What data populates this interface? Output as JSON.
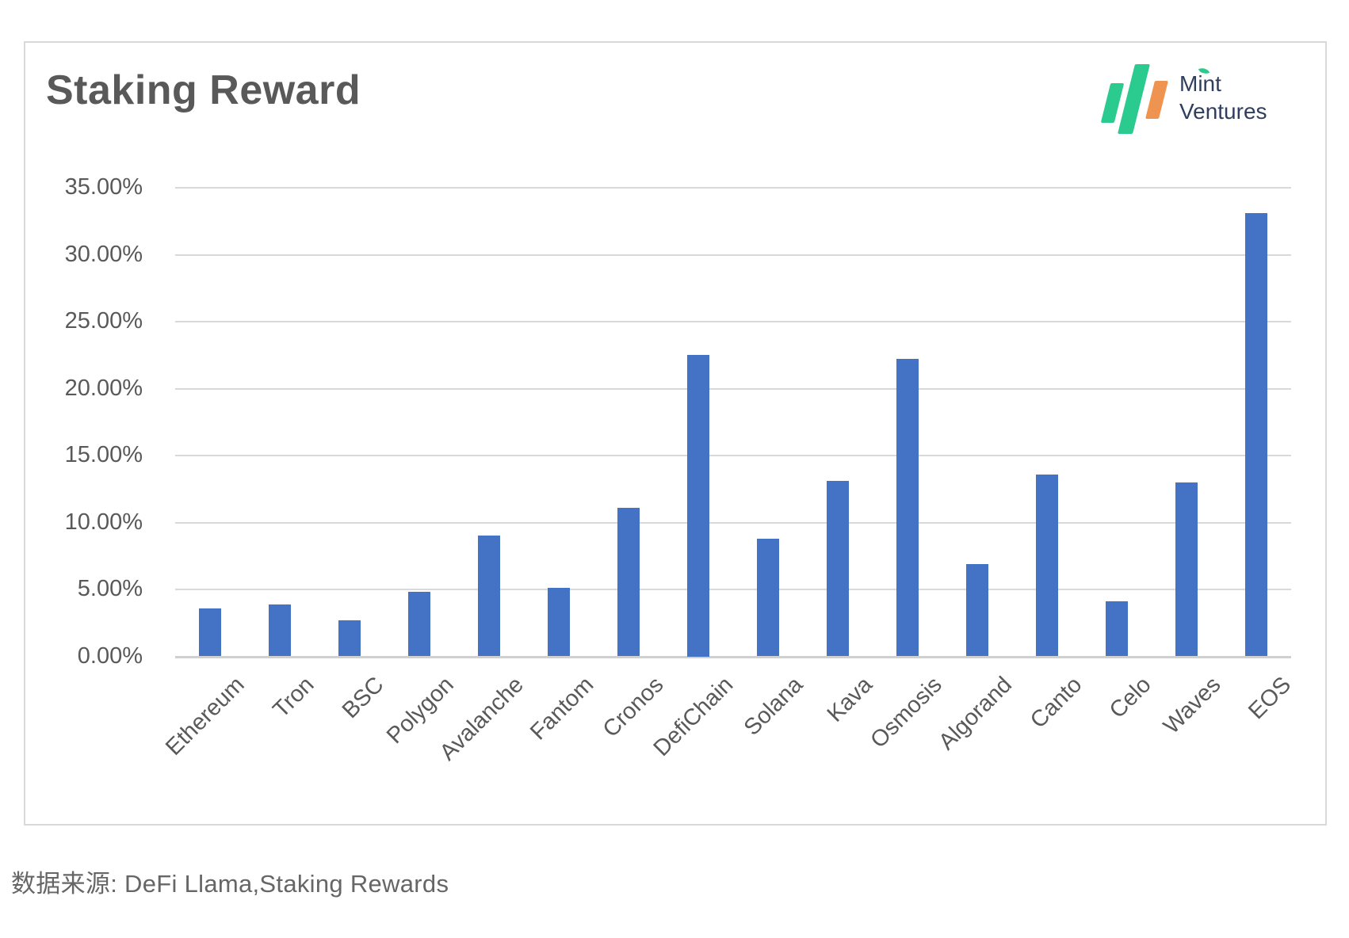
{
  "page": {
    "source_note": "数据来源: DeFi Llama,Staking Rewards",
    "background": "#ffffff"
  },
  "logo": {
    "line1": "Mint",
    "line2": "Ventures",
    "text_color": "#2f3e5c",
    "green": "#2bca8e",
    "orange": "#ef9351"
  },
  "chart_data": {
    "type": "bar",
    "title": "Staking Reward",
    "categories": [
      "Ethereum",
      "Tron",
      "BSC",
      "Polygon",
      "Avalanche",
      "Fantom",
      "Cronos",
      "DefiChain",
      "Solana",
      "Kava",
      "Osmosis",
      "Algorand",
      "Canto",
      "Celo",
      "Waves",
      "EOS"
    ],
    "values": [
      3.6,
      3.9,
      2.7,
      4.8,
      9.0,
      5.1,
      11.1,
      22.5,
      8.8,
      13.1,
      22.2,
      6.9,
      13.6,
      4.1,
      13.0,
      33.1
    ],
    "value_unit": "%",
    "xlabel": "",
    "ylabel": "",
    "ylim": [
      0,
      35
    ],
    "ytick_step": 5,
    "ytick_labels": [
      "0.00%",
      "5.00%",
      "10.00%",
      "15.00%",
      "20.00%",
      "25.00%",
      "30.00%",
      "35.00%"
    ],
    "grid": true,
    "legend": "none",
    "bar_color": "#4472C4",
    "grid_color": "#d9d9d9",
    "baseline_color": "#d0d0d0",
    "axis_text_color": "#595959",
    "label_rotation_deg": -45
  }
}
